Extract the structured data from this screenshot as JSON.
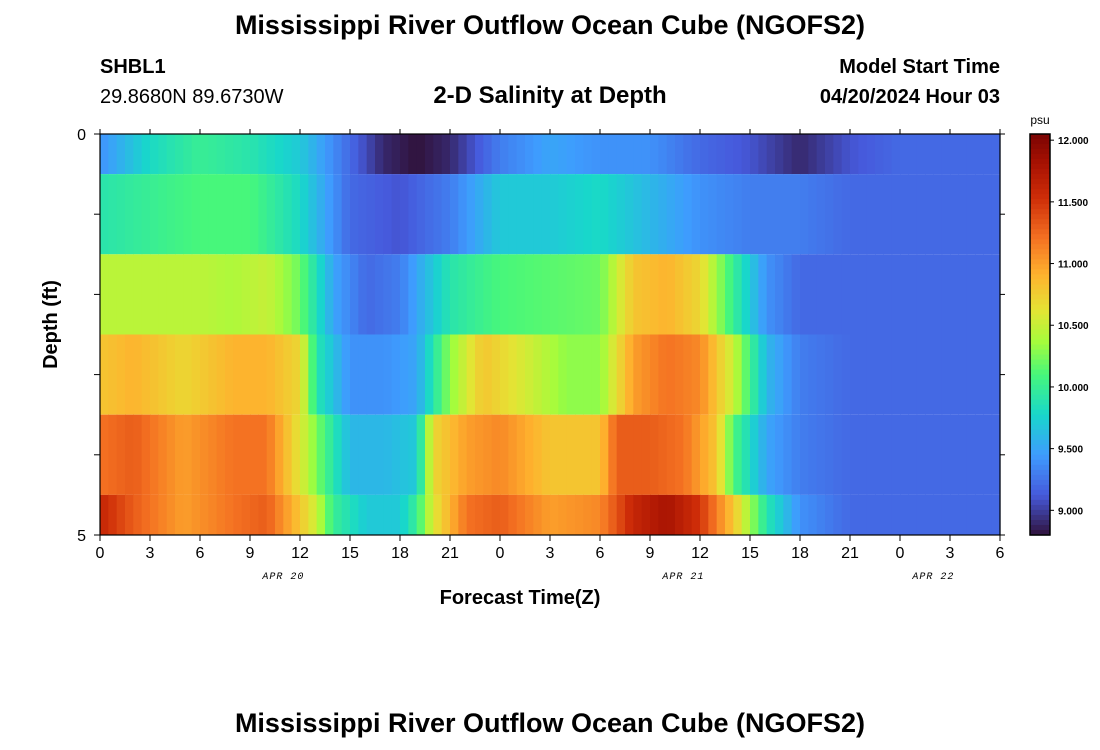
{
  "header": {
    "title": "Mississippi River Outflow Ocean Cube (NGOFS2)",
    "station_id": "SHBL1",
    "station_coords": "29.8680N  89.6730W",
    "subtitle": "2-D Salinity at Depth",
    "start_label": "Model Start Time",
    "start_time": "04/20/2024 Hour 03"
  },
  "footer": {
    "title": "Mississippi River Outflow Ocean Cube (NGOFS2)"
  },
  "chart_data": {
    "type": "heatmap",
    "title": "2-D Salinity at Depth",
    "xlabel": "Forecast Time(Z)",
    "ylabel": "Depth (ft)",
    "x_tick_labels": [
      "0",
      "3",
      "6",
      "9",
      "12",
      "15",
      "18",
      "21",
      "0",
      "3",
      "6",
      "9",
      "12",
      "15",
      "18",
      "21",
      "0",
      "3",
      "6"
    ],
    "date_labels": [
      {
        "label": "APR 20",
        "at_hour": 11
      },
      {
        "label": "APR 21",
        "at_hour": 35
      },
      {
        "label": "APR 22",
        "at_hour": 50
      }
    ],
    "x_range_hours": [
      0,
      54
    ],
    "y_range_ft": [
      0,
      5
    ],
    "y_tick_labels": [
      "0",
      "5"
    ],
    "colorbar": {
      "unit": "psu",
      "range": [
        8.8,
        12.05
      ],
      "tick_labels": [
        "12.000",
        "11.500",
        "11.000",
        "10.500",
        "10.000",
        "9.500",
        "9.000"
      ],
      "tick_values": [
        12.0,
        11.5,
        11.0,
        10.5,
        10.0,
        9.5,
        9.0
      ]
    },
    "layers": [
      {
        "depth_top": 0.0,
        "depth_bottom": 0.5,
        "hours": [
          0,
          3,
          6,
          9,
          12,
          15,
          17,
          19,
          21,
          24,
          27,
          30,
          33,
          36,
          39,
          42,
          45,
          48,
          51,
          54
        ],
        "values": [
          9.4,
          9.8,
          10.0,
          9.9,
          9.7,
          9.2,
          8.9,
          8.8,
          8.9,
          9.3,
          9.5,
          9.4,
          9.4,
          9.2,
          9.1,
          8.9,
          9.1,
          9.2,
          9.2,
          9.2
        ]
      },
      {
        "depth_top": 0.5,
        "depth_bottom": 1.5,
        "hours": [
          0,
          3,
          6,
          9,
          12,
          15,
          18,
          21,
          24,
          27,
          30,
          33,
          36,
          39,
          42,
          45,
          48,
          51,
          54
        ],
        "values": [
          9.9,
          10.0,
          10.1,
          10.1,
          9.8,
          9.2,
          9.1,
          9.3,
          9.7,
          9.7,
          9.8,
          9.6,
          9.4,
          9.3,
          9.3,
          9.2,
          9.2,
          9.2,
          9.2
        ]
      },
      {
        "depth_top": 1.5,
        "depth_bottom": 2.5,
        "hours": [
          0,
          3,
          6,
          8,
          10,
          12,
          14,
          16,
          18,
          21,
          24,
          27,
          30,
          32,
          34,
          36,
          38,
          40,
          42,
          45,
          48,
          51,
          54
        ],
        "values": [
          10.45,
          10.45,
          10.45,
          10.4,
          10.5,
          10.2,
          9.5,
          9.2,
          9.3,
          9.9,
          10.1,
          10.15,
          10.2,
          10.8,
          10.9,
          10.7,
          10.0,
          9.4,
          9.2,
          9.2,
          9.2,
          9.2,
          9.2
        ]
      },
      {
        "depth_top": 2.5,
        "depth_bottom": 3.5,
        "hours": [
          0,
          2,
          5,
          8,
          10,
          12,
          13,
          15,
          17,
          19,
          21,
          23,
          25,
          28,
          30,
          32,
          34,
          36,
          38,
          40,
          42,
          45,
          48,
          51,
          54
        ],
        "values": [
          10.8,
          10.9,
          10.7,
          10.9,
          10.9,
          10.7,
          9.9,
          9.4,
          9.4,
          9.5,
          10.3,
          10.8,
          10.6,
          10.3,
          10.3,
          11.0,
          11.2,
          11.1,
          10.5,
          9.6,
          9.3,
          9.2,
          9.2,
          9.2,
          9.2
        ]
      },
      {
        "depth_top": 3.5,
        "depth_bottom": 4.5,
        "hours": [
          0,
          2,
          5,
          8,
          10,
          12,
          14,
          15,
          17,
          19,
          20,
          22,
          24,
          27,
          30,
          31,
          33,
          35,
          37,
          38,
          40,
          42,
          45,
          48,
          51,
          54
        ],
        "values": [
          11.2,
          11.3,
          11.0,
          11.2,
          11.2,
          10.6,
          9.9,
          9.6,
          9.6,
          9.7,
          10.7,
          11.0,
          11.1,
          10.8,
          10.8,
          11.3,
          11.3,
          11.2,
          10.8,
          10.1,
          9.5,
          9.3,
          9.2,
          9.2,
          9.2,
          9.2
        ]
      },
      {
        "depth_top": 4.5,
        "depth_bottom": 5.0,
        "hours": [
          0,
          2,
          5,
          8,
          10,
          12,
          13,
          14,
          16,
          18,
          19,
          20,
          22,
          24,
          27,
          30,
          32,
          34,
          36,
          38,
          40,
          42,
          45,
          48,
          51,
          54
        ],
        "values": [
          11.6,
          11.3,
          11.0,
          11.2,
          11.3,
          10.8,
          10.5,
          10.0,
          9.7,
          9.7,
          10.0,
          10.6,
          11.2,
          11.3,
          11.0,
          11.1,
          11.6,
          11.8,
          11.5,
          10.8,
          9.9,
          9.4,
          9.2,
          9.2,
          9.2,
          9.2
        ]
      }
    ]
  }
}
